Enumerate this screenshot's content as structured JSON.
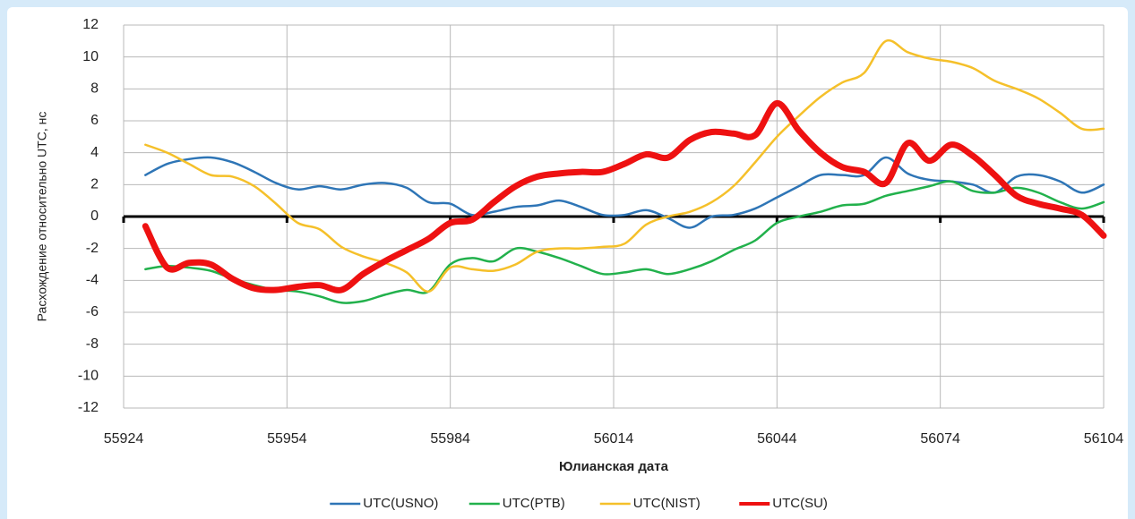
{
  "chart_data": {
    "type": "line",
    "x_label": "Юлианская дата",
    "y_label": "Расхождение относительно UTC, нс",
    "x": [
      55928,
      55932,
      55936,
      55940,
      55944,
      55948,
      55952,
      55956,
      55960,
      55964,
      55968,
      55972,
      55976,
      55980,
      55984,
      55988,
      55992,
      55996,
      56000,
      56004,
      56008,
      56012,
      56016,
      56020,
      56024,
      56028,
      56032,
      56036,
      56040,
      56044,
      56048,
      56052,
      56056,
      56060,
      56064,
      56068,
      56072,
      56076,
      56080,
      56084,
      56088,
      56092,
      56096,
      56100,
      56104
    ],
    "series": [
      {
        "name": "UTC(USNO)",
        "color": "#2e75b6",
        "values": [
          2.6,
          3.3,
          3.6,
          3.7,
          3.4,
          2.8,
          2.1,
          1.7,
          1.9,
          1.7,
          2.0,
          2.1,
          1.8,
          0.9,
          0.8,
          0.1,
          0.3,
          0.6,
          0.7,
          1.0,
          0.6,
          0.1,
          0.1,
          0.4,
          -0.1,
          -0.7,
          0.0,
          0.1,
          0.5,
          1.2,
          1.9,
          2.6,
          2.6,
          2.6,
          3.7,
          2.7,
          2.3,
          2.2,
          2.0,
          1.5,
          2.5,
          2.6,
          2.2,
          1.5,
          2.0
        ]
      },
      {
        "name": "UTC(PTB)",
        "color": "#22b14c",
        "values": [
          -3.3,
          -3.1,
          -3.2,
          -3.4,
          -3.9,
          -4.3,
          -4.6,
          -4.7,
          -5.0,
          -5.4,
          -5.3,
          -4.9,
          -4.6,
          -4.7,
          -3.0,
          -2.6,
          -2.8,
          -2.0,
          -2.2,
          -2.6,
          -3.1,
          -3.6,
          -3.5,
          -3.3,
          -3.6,
          -3.3,
          -2.8,
          -2.1,
          -1.5,
          -0.4,
          0.0,
          0.3,
          0.7,
          0.8,
          1.3,
          1.6,
          1.9,
          2.2,
          1.6,
          1.5,
          1.8,
          1.5,
          0.9,
          0.5,
          0.9
        ]
      },
      {
        "name": "UTC(NIST)",
        "color": "#f5c02a",
        "values": [
          4.5,
          4.0,
          3.3,
          2.6,
          2.5,
          1.9,
          0.8,
          -0.4,
          -0.8,
          -1.9,
          -2.5,
          -2.9,
          -3.5,
          -4.7,
          -3.2,
          -3.3,
          -3.4,
          -3.0,
          -2.2,
          -2.0,
          -2.0,
          -1.9,
          -1.7,
          -0.5,
          0.0,
          0.3,
          0.9,
          1.9,
          3.4,
          5.0,
          6.3,
          7.5,
          8.4,
          9.0,
          11.0,
          10.3,
          9.9,
          9.7,
          9.3,
          8.5,
          8.0,
          7.4,
          6.5,
          5.5,
          5.5
        ]
      },
      {
        "name": "UTC(SU)",
        "color": "#ee1111",
        "values": [
          -0.6,
          -3.2,
          -2.9,
          -3.0,
          -3.9,
          -4.5,
          -4.6,
          -4.4,
          -4.3,
          -4.6,
          -3.6,
          -2.8,
          -2.1,
          -1.4,
          -0.4,
          -0.2,
          0.9,
          1.9,
          2.5,
          2.7,
          2.8,
          2.8,
          3.3,
          3.9,
          3.7,
          4.8,
          5.3,
          5.2,
          5.1,
          7.1,
          5.4,
          4.0,
          3.1,
          2.8,
          2.1,
          4.6,
          3.5,
          4.5,
          3.8,
          2.6,
          1.3,
          0.8,
          0.5,
          0.1,
          -1.2
        ]
      }
    ],
    "xlim": [
      55924,
      56104
    ],
    "xticks": [
      55924,
      55954,
      55984,
      56014,
      56044,
      56074,
      56104
    ],
    "ylim": [
      -12,
      12
    ],
    "yticks": [
      -12,
      -10,
      -8,
      -6,
      -4,
      -2,
      0,
      2,
      4,
      6,
      8,
      10,
      12
    ],
    "grid": true,
    "legend": "bottom"
  }
}
